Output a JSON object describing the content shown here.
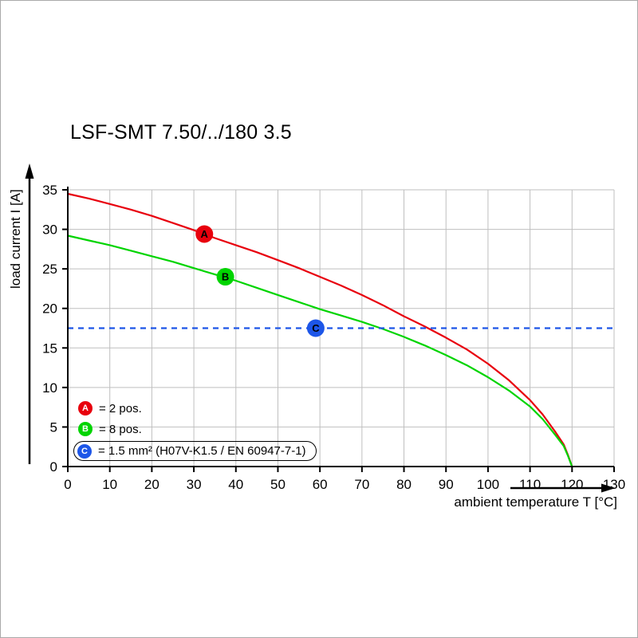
{
  "page": {
    "title": "LSF-SMT 7.50/../180 3.5"
  },
  "chart_data": {
    "type": "line",
    "title": "LSF-SMT 7.50/../180 3.5",
    "xlabel": "ambient temperature T [°C]",
    "ylabel": "load current I [A]",
    "xlim": [
      0,
      130
    ],
    "ylim": [
      0,
      35
    ],
    "xticks": [
      0,
      10,
      20,
      30,
      40,
      50,
      60,
      70,
      80,
      90,
      100,
      110,
      120,
      130
    ],
    "yticks": [
      0,
      5,
      10,
      15,
      20,
      25,
      30,
      35
    ],
    "grid": true,
    "legend_position": "bottom-left-inside",
    "series": [
      {
        "name": "A",
        "label": "= 2 pos.",
        "color": "#e8000d",
        "style": "solid",
        "marker": {
          "x": 32.5,
          "y": 29.4
        },
        "points": [
          [
            0,
            34.5
          ],
          [
            5,
            33.9
          ],
          [
            10,
            33.2
          ],
          [
            15,
            32.5
          ],
          [
            20,
            31.7
          ],
          [
            25,
            30.8
          ],
          [
            30,
            29.9
          ],
          [
            35,
            28.9
          ],
          [
            40,
            28.0
          ],
          [
            45,
            27.1
          ],
          [
            50,
            26.1
          ],
          [
            55,
            25.1
          ],
          [
            60,
            24.0
          ],
          [
            65,
            22.9
          ],
          [
            70,
            21.7
          ],
          [
            75,
            20.4
          ],
          [
            80,
            19.0
          ],
          [
            85,
            17.7
          ],
          [
            90,
            16.3
          ],
          [
            95,
            14.8
          ],
          [
            100,
            13.0
          ],
          [
            105,
            10.9
          ],
          [
            110,
            8.4
          ],
          [
            113,
            6.6
          ],
          [
            116,
            4.4
          ],
          [
            118,
            2.8
          ],
          [
            119,
            1.5
          ],
          [
            120,
            0
          ]
        ]
      },
      {
        "name": "B",
        "label": "= 8 pos.",
        "color": "#00d400",
        "style": "solid",
        "marker": {
          "x": 37.5,
          "y": 24.0
        },
        "points": [
          [
            0,
            29.2
          ],
          [
            5,
            28.6
          ],
          [
            10,
            28.0
          ],
          [
            15,
            27.3
          ],
          [
            20,
            26.6
          ],
          [
            25,
            25.9
          ],
          [
            30,
            25.1
          ],
          [
            35,
            24.3
          ],
          [
            40,
            23.5
          ],
          [
            45,
            22.6
          ],
          [
            50,
            21.7
          ],
          [
            55,
            20.8
          ],
          [
            60,
            19.9
          ],
          [
            65,
            19.1
          ],
          [
            70,
            18.3
          ],
          [
            75,
            17.4
          ],
          [
            80,
            16.4
          ],
          [
            85,
            15.3
          ],
          [
            90,
            14.1
          ],
          [
            95,
            12.8
          ],
          [
            100,
            11.3
          ],
          [
            105,
            9.6
          ],
          [
            110,
            7.6
          ],
          [
            113,
            6.0
          ],
          [
            116,
            4.0
          ],
          [
            118,
            2.6
          ],
          [
            119,
            1.4
          ],
          [
            120,
            0
          ]
        ]
      },
      {
        "name": "C",
        "label": "= 1.5 mm² (H07V-K1.5 / EN 60947-7-1)",
        "color": "#1d56e8",
        "style": "dashed",
        "marker": {
          "x": 59,
          "y": 17.5
        },
        "points": [
          [
            0,
            17.5
          ],
          [
            130,
            17.5
          ]
        ]
      }
    ]
  }
}
